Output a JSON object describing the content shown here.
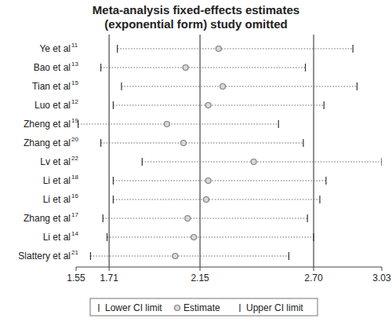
{
  "chart_data": {
    "type": "forest",
    "title": [
      "Meta-analysis fixed-effects estimates",
      "(exponential form) study omitted"
    ],
    "categories": [
      "Ye et al",
      "Bao et al",
      "Tian et al",
      "Luo et al",
      "Zheng et al",
      "Zhang et al",
      "Lv et al",
      "Li et al",
      "Li et al",
      "Zhang et al",
      "Li et al",
      "Slattery et al"
    ],
    "references": [
      11,
      13,
      15,
      12,
      19,
      20,
      22,
      18,
      16,
      17,
      14,
      21
    ],
    "series": [
      {
        "name": "Lower CI limit",
        "marker": "tick",
        "color": "#333333",
        "values": [
          1.75,
          1.67,
          1.77,
          1.73,
          1.56,
          1.67,
          1.87,
          1.73,
          1.73,
          1.68,
          1.7,
          1.62
        ]
      },
      {
        "name": "Estimate",
        "marker": "circle",
        "color": "#808080",
        "values": [
          2.24,
          2.08,
          2.26,
          2.19,
          1.99,
          2.07,
          2.41,
          2.19,
          2.18,
          2.09,
          2.12,
          2.03
        ]
      },
      {
        "name": "Upper CI limit",
        "marker": "tick",
        "color": "#333333",
        "values": [
          2.89,
          2.66,
          2.91,
          2.75,
          2.53,
          2.65,
          3.03,
          2.76,
          2.73,
          2.67,
          2.7,
          2.58
        ]
      }
    ],
    "overall": {
      "lower": 1.71,
      "estimate": 2.15,
      "upper": {
        "value": 2.7,
        "label": "2.70"
      }
    },
    "xlim": [
      1.55,
      3.03
    ],
    "xticks": [
      1.55,
      1.71,
      2.15,
      {
        "value": 2.7,
        "label": "2.70"
      },
      3.03
    ],
    "line_style": "dotted",
    "legend": "bottom"
  }
}
